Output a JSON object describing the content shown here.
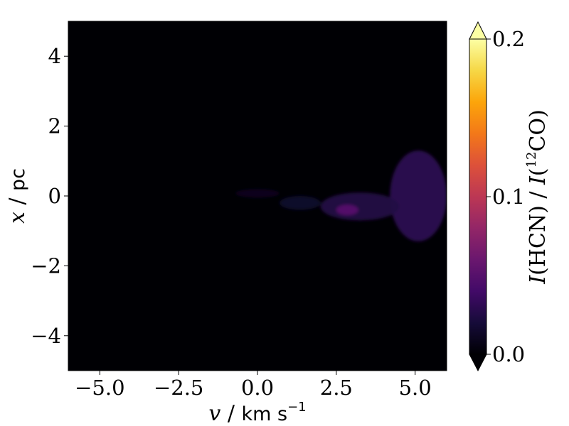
{
  "chart_data": {
    "type": "heatmap",
    "xlabel": {
      "var": "v",
      "sep": " / ",
      "unit": "km s",
      "unit_exp": "−1"
    },
    "ylabel": {
      "var": "x",
      "sep": " / ",
      "unit": "pc"
    },
    "xlim": [
      -6,
      6
    ],
    "ylim": [
      -5,
      5
    ],
    "xticks": [
      -5.0,
      -2.5,
      0.0,
      2.5,
      5.0
    ],
    "xtick_labels": [
      "−5.0",
      "−2.5",
      "0.0",
      "2.5",
      "5.0"
    ],
    "yticks": [
      -4,
      -2,
      0,
      2,
      4
    ],
    "ytick_labels": [
      "−4",
      "−2",
      "0",
      "2",
      "4"
    ],
    "colorbar": {
      "label": {
        "prefix": "I",
        "num": "(HCN)",
        "sep": " / ",
        "den_var": "I",
        "den_open": "(",
        "isotope": "12",
        "den": "CO)"
      },
      "min": 0.0,
      "max": 0.2,
      "ticks": [
        0.0,
        0.1,
        0.2
      ],
      "tick_labels": [
        "0.0",
        "0.1",
        "0.2"
      ],
      "extend": "both",
      "colormap": "inferno",
      "color_min": "#000004",
      "color_max": "#fcffa4"
    },
    "background_value": 0.0,
    "emission_regions": [
      {
        "v_range": [
          4.2,
          6.0
        ],
        "x_range": [
          -1.3,
          1.3
        ],
        "value": 0.03
      },
      {
        "v_range": [
          2.0,
          4.5
        ],
        "x_range": [
          -0.7,
          0.1
        ],
        "value": 0.025
      },
      {
        "v_range": [
          2.5,
          3.2
        ],
        "x_range": [
          -0.55,
          -0.25
        ],
        "value": 0.05
      },
      {
        "v_range": [
          0.7,
          2.0
        ],
        "x_range": [
          -0.4,
          0.0
        ],
        "value": 0.015
      },
      {
        "v_range": [
          -0.7,
          0.7
        ],
        "x_range": [
          -0.05,
          0.2
        ],
        "value": 0.01
      }
    ]
  }
}
